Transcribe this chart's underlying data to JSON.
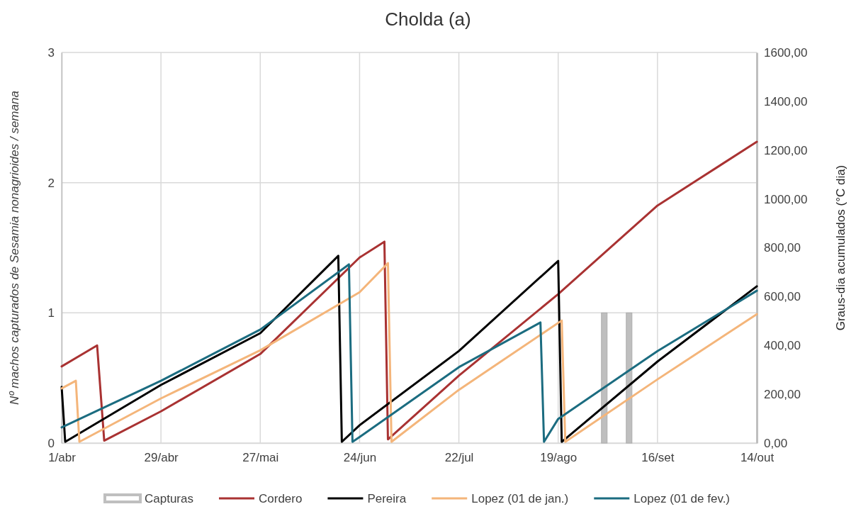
{
  "chart_data": {
    "type": "line",
    "title": "Cholda (a)",
    "ylabel": "Nº machos capturados de Sesamia nonagrioides / semana",
    "y2label": "Graus-dia acumulados (°C dia)",
    "xlim": [
      "--04-01",
      "--10-14"
    ],
    "xticks": [
      {
        "value": "--04-01",
        "label": "1/abr"
      },
      {
        "value": "--04-29",
        "label": "29/abr"
      },
      {
        "value": "--05-27",
        "label": "27/mai"
      },
      {
        "value": "--06-24",
        "label": "24/jun"
      },
      {
        "value": "--07-22",
        "label": "22/jul"
      },
      {
        "value": "--08-19",
        "label": "19/ago"
      },
      {
        "value": "--09-16",
        "label": "16/set"
      },
      {
        "value": "--10-14",
        "label": "14/out"
      }
    ],
    "ylim": [
      0,
      3
    ],
    "yticks": [
      0,
      1,
      2,
      3
    ],
    "y2lim": [
      0,
      1600
    ],
    "y2ticks": [
      {
        "value": 0,
        "label": "0,00"
      },
      {
        "value": 200,
        "label": "200,00"
      },
      {
        "value": 400,
        "label": "400,00"
      },
      {
        "value": 600,
        "label": "600,00"
      },
      {
        "value": 800,
        "label": "800,00"
      },
      {
        "value": 1000,
        "label": "1000,00"
      },
      {
        "value": 1200,
        "label": "1200,00"
      },
      {
        "value": 1400,
        "label": "1400,00"
      },
      {
        "value": 1600,
        "label": "1600,00"
      }
    ],
    "grid": true,
    "legend": "bottom",
    "series": [
      {
        "name": "Capturas",
        "type": "bar",
        "color": "#bfbfbf",
        "x": [
          "--09-01",
          "--09-08"
        ],
        "values": [
          1,
          1
        ]
      },
      {
        "name": "Cordero",
        "axis": "y2",
        "color": "#a93232",
        "x": [
          "--04-01",
          "--04-11",
          "--04-13",
          "--04-29",
          "--05-27",
          "--06-24",
          "--07-01",
          "--07-02",
          "--07-22",
          "--08-19",
          "--09-16",
          "--10-14"
        ],
        "values": [
          314,
          400,
          10,
          130,
          365,
          760,
          825,
          15,
          276,
          610,
          973,
          1234
        ]
      },
      {
        "name": "Pereira",
        "axis": "y2",
        "color": "#000000",
        "x": [
          "--04-01",
          "--04-02",
          "--04-29",
          "--05-27",
          "--06-18",
          "--06-19",
          "--06-24",
          "--07-22",
          "--08-19",
          "--08-20",
          "--09-16",
          "--10-14"
        ],
        "values": [
          230,
          5,
          238,
          450,
          767,
          5,
          73,
          377,
          746,
          5,
          334,
          642
        ]
      },
      {
        "name": "Lopez (01 de jan.)",
        "axis": "y2",
        "color": "#f4b57a",
        "x": [
          "--04-01",
          "--04-05",
          "--04-06",
          "--04-29",
          "--05-27",
          "--06-24",
          "--07-02",
          "--07-03",
          "--07-22",
          "--08-20",
          "--08-21",
          "--09-16",
          "--10-14"
        ],
        "values": [
          224,
          255,
          5,
          183,
          380,
          618,
          737,
          5,
          218,
          502,
          5,
          261,
          528
        ]
      },
      {
        "name": "Lopez (01 de fev.)",
        "axis": "y2",
        "color": "#1b6c80",
        "x": [
          "--04-01",
          "--04-29",
          "--05-27",
          "--06-21",
          "--06-22",
          "--06-24",
          "--07-22",
          "--08-14",
          "--08-15",
          "--08-19",
          "--09-16",
          "--10-14"
        ],
        "values": [
          64,
          255,
          465,
          732,
          5,
          25,
          311,
          494,
          5,
          99,
          377,
          624
        ]
      }
    ]
  }
}
